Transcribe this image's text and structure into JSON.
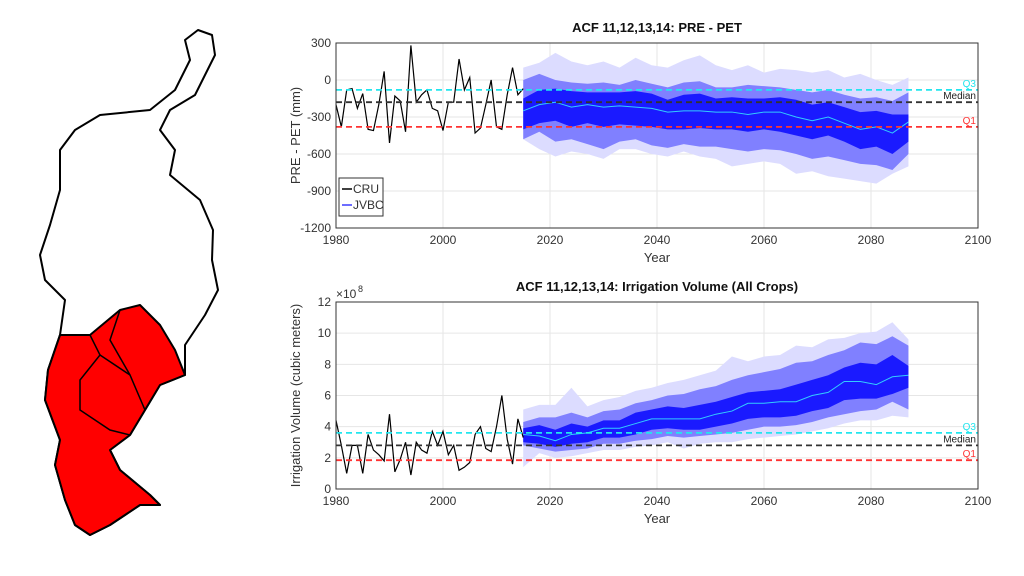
{
  "map": {
    "colors": {
      "basin": "#ffffff",
      "subbasins": "#ff0000",
      "outline": "#000000"
    }
  },
  "colors": {
    "cru": "#000000",
    "jvbc": "#3c3cff",
    "median_line": "#33ccff",
    "outer_band": "#dcdcff",
    "mid_band": "#8080ff",
    "inner_band": "#1a1aff",
    "q3": "#22e5ee",
    "median": "#333333",
    "q1": "#ff3333"
  },
  "chart_data": [
    {
      "type": "area",
      "title": "ACF 11,12,13,14: PRE - PET",
      "xlabel": "Year",
      "ylabel": "PRE - PET (mm)",
      "xlim": [
        1980,
        2100
      ],
      "ylim": [
        -1200,
        300
      ],
      "xticks": [
        1980,
        2000,
        2020,
        2040,
        2060,
        2080,
        2100
      ],
      "yticks": [
        -1200,
        -900,
        -600,
        -300,
        0,
        300
      ],
      "grid": true,
      "legend": {
        "placement": "bottom-left",
        "entries": [
          "CRU",
          "JVBC"
        ]
      },
      "reference_lines": [
        {
          "label": "Q3",
          "value": -80
        },
        {
          "label": "Median",
          "value": -180
        },
        {
          "label": "Q1",
          "value": -380
        }
      ],
      "cru": {
        "x": [
          1980,
          1981,
          1982,
          1983,
          1984,
          1985,
          1986,
          1987,
          1988,
          1989,
          1990,
          1991,
          1992,
          1993,
          1994,
          1995,
          1996,
          1997,
          1998,
          1999,
          2000,
          2001,
          2002,
          2003,
          2004,
          2005,
          2006,
          2007,
          2008,
          2009,
          2010,
          2011,
          2012,
          2013,
          2014,
          2015
        ],
        "y": [
          -200,
          -380,
          -80,
          -70,
          -230,
          -110,
          -400,
          -410,
          -200,
          70,
          -510,
          -130,
          -170,
          -420,
          280,
          -180,
          -120,
          -80,
          -230,
          -250,
          -410,
          -180,
          -180,
          170,
          -80,
          20,
          -430,
          -390,
          -200,
          0,
          -380,
          -400,
          -120,
          100,
          -120,
          -70
        ]
      },
      "jvbc": {
        "x": [
          2015,
          2018,
          2021,
          2024,
          2027,
          2030,
          2033,
          2036,
          2039,
          2042,
          2045,
          2048,
          2051,
          2054,
          2057,
          2060,
          2063,
          2066,
          2069,
          2072,
          2075,
          2078,
          2081,
          2084,
          2087
        ],
        "median": [
          -250,
          -200,
          -180,
          -220,
          -200,
          -220,
          -210,
          -220,
          -230,
          -260,
          -250,
          -250,
          -260,
          -260,
          -280,
          -260,
          -260,
          -300,
          -330,
          -300,
          -350,
          -400,
          -380,
          -430,
          -340
        ],
        "inner_hi": [
          -150,
          -80,
          -70,
          -90,
          -100,
          -100,
          -100,
          -90,
          -110,
          -160,
          -120,
          -110,
          -150,
          -140,
          -150,
          -150,
          -140,
          -160,
          -200,
          -180,
          -220,
          -260,
          -250,
          -280,
          -280
        ],
        "inner_lo": [
          -400,
          -350,
          -330,
          -380,
          -350,
          -380,
          -360,
          -370,
          -380,
          -400,
          -400,
          -390,
          -400,
          -400,
          -420,
          -400,
          -420,
          -450,
          -480,
          -450,
          -500,
          -560,
          -540,
          -600,
          -500
        ],
        "mid_hi": [
          0,
          50,
          0,
          -20,
          -30,
          -20,
          -40,
          0,
          -30,
          -60,
          -20,
          -10,
          -60,
          -60,
          -40,
          -50,
          -60,
          -80,
          -100,
          -80,
          -120,
          -150,
          -140,
          -170,
          -100
        ],
        "mid_lo": [
          -480,
          -420,
          -500,
          -480,
          -520,
          -560,
          -500,
          -480,
          -530,
          -550,
          -520,
          -540,
          -540,
          -560,
          -580,
          -560,
          -570,
          -600,
          -640,
          -620,
          -650,
          -680,
          -690,
          -730,
          -600
        ],
        "outer_hi": [
          100,
          140,
          220,
          150,
          120,
          150,
          100,
          180,
          120,
          100,
          160,
          200,
          120,
          80,
          120,
          60,
          90,
          80,
          60,
          80,
          20,
          50,
          0,
          -40,
          20
        ],
        "outer_lo": [
          -480,
          -560,
          -620,
          -580,
          -600,
          -640,
          -560,
          -560,
          -600,
          -620,
          -580,
          -620,
          -640,
          -700,
          -680,
          -660,
          -680,
          -760,
          -740,
          -780,
          -800,
          -820,
          -840,
          -760,
          -700
        ]
      }
    },
    {
      "type": "area",
      "title": "ACF 11,12,13,14: Irrigation Volume (All Crops)",
      "xlabel": "Year",
      "ylabel": "Irrigation Volume (cubic meters)",
      "y_multiplier": "×10",
      "y_exponent": "8",
      "xlim": [
        1980,
        2100
      ],
      "ylim": [
        0,
        12
      ],
      "xticks": [
        1980,
        2000,
        2020,
        2040,
        2060,
        2080,
        2100
      ],
      "yticks": [
        0,
        2,
        4,
        6,
        8,
        10,
        12
      ],
      "grid": true,
      "reference_lines": [
        {
          "label": "Q3",
          "value": 3.6
        },
        {
          "label": "Median",
          "value": 2.8
        },
        {
          "label": "Q1",
          "value": 1.85
        }
      ],
      "cru": {
        "x": [
          1980,
          1981,
          1982,
          1983,
          1984,
          1985,
          1986,
          1987,
          1988,
          1989,
          1990,
          1991,
          1992,
          1993,
          1994,
          1995,
          1996,
          1997,
          1998,
          1999,
          2000,
          2001,
          2002,
          2003,
          2004,
          2005,
          2006,
          2007,
          2008,
          2009,
          2010,
          2011,
          2012,
          2013,
          2014,
          2015
        ],
        "y": [
          4.4,
          2.8,
          1.0,
          2.8,
          2.8,
          1.0,
          3.5,
          2.5,
          2.2,
          1.8,
          4.8,
          1.1,
          1.9,
          3.0,
          0.9,
          3.0,
          2.5,
          2.3,
          3.7,
          2.8,
          3.7,
          2.2,
          2.8,
          1.2,
          1.4,
          1.7,
          3.5,
          4.0,
          2.6,
          2.4,
          4.0,
          6.0,
          3.2,
          1.6,
          4.5,
          3.3
        ]
      },
      "jvbc": {
        "x": [
          2015,
          2018,
          2021,
          2024,
          2027,
          2030,
          2033,
          2036,
          2039,
          2042,
          2045,
          2048,
          2051,
          2054,
          2057,
          2060,
          2063,
          2066,
          2069,
          2072,
          2075,
          2078,
          2081,
          2084,
          2087
        ],
        "median": [
          3.5,
          3.4,
          3.1,
          3.5,
          3.6,
          3.9,
          3.9,
          4.2,
          4.5,
          4.5,
          4.5,
          4.5,
          4.8,
          5.0,
          5.5,
          5.5,
          5.6,
          5.6,
          6.0,
          6.2,
          6.9,
          6.9,
          6.7,
          7.2,
          7.3
        ],
        "inner_hi": [
          3.9,
          4.1,
          3.8,
          4.2,
          4.0,
          4.4,
          4.4,
          4.9,
          5.1,
          5.3,
          5.2,
          5.4,
          5.6,
          5.9,
          6.2,
          6.3,
          6.4,
          6.7,
          7.0,
          7.3,
          7.8,
          8.1,
          8.0,
          8.6,
          7.9
        ],
        "inner_lo": [
          3.0,
          2.9,
          2.7,
          2.9,
          3.0,
          3.3,
          3.3,
          3.5,
          3.8,
          3.9,
          3.8,
          3.8,
          4.0,
          4.2,
          4.5,
          4.6,
          4.6,
          4.7,
          5.0,
          5.2,
          5.7,
          5.8,
          5.8,
          6.1,
          6.5
        ],
        "mid_hi": [
          4.3,
          4.6,
          4.6,
          4.9,
          4.6,
          5.0,
          5.1,
          5.5,
          5.7,
          6.0,
          6.1,
          6.4,
          6.6,
          7.0,
          7.3,
          7.5,
          7.7,
          8.1,
          8.2,
          8.6,
          8.9,
          9.4,
          9.3,
          9.8,
          9.2
        ],
        "mid_lo": [
          2.8,
          2.6,
          2.4,
          2.5,
          2.6,
          2.9,
          2.9,
          3.1,
          3.2,
          3.4,
          3.3,
          3.4,
          3.5,
          3.6,
          3.8,
          4.0,
          4.0,
          4.1,
          4.3,
          4.6,
          4.8,
          5.0,
          5.1,
          5.6,
          5.1
        ],
        "outer_hi": [
          5.1,
          5.4,
          5.4,
          6.5,
          5.3,
          5.7,
          5.9,
          6.3,
          6.5,
          6.8,
          7.0,
          7.3,
          7.6,
          8.5,
          8.2,
          8.5,
          8.6,
          9.2,
          9.1,
          9.6,
          9.7,
          10.0,
          10.1,
          10.7,
          9.6
        ],
        "outer_lo": [
          1.4,
          2.3,
          2.0,
          2.1,
          2.3,
          2.5,
          2.5,
          2.7,
          2.8,
          3.0,
          2.6,
          2.9,
          3.0,
          3.0,
          3.2,
          3.3,
          3.4,
          3.5,
          3.7,
          3.9,
          4.2,
          4.4,
          4.4,
          4.7,
          4.6
        ]
      }
    }
  ]
}
